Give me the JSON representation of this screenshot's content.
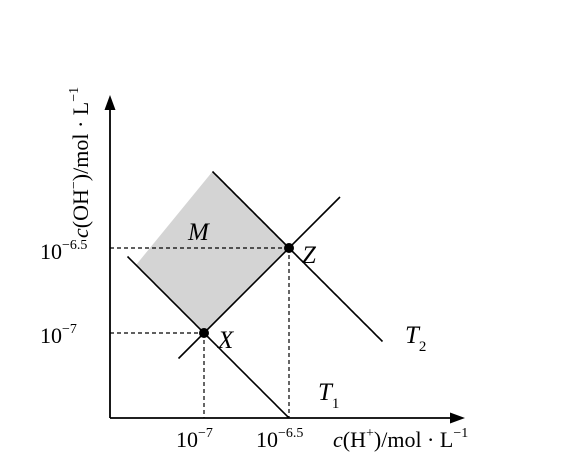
{
  "chart_data": {
    "type": "line",
    "x_axis": {
      "label_main": "c(H",
      "label_sup": "+",
      "label_rest": ")/mol · L",
      "label_unit_sup": "−1",
      "ticks": [
        {
          "base": "10",
          "exp": "−7",
          "value": -7
        },
        {
          "base": "10",
          "exp": "−6.5",
          "value": -6.5
        }
      ]
    },
    "y_axis": {
      "label_main": "c(OH",
      "label_sup": "−",
      "label_rest": ")/mol · L",
      "label_unit_sup": "−1",
      "ticks": [
        {
          "base": "10",
          "exp": "−7",
          "value": -7
        },
        {
          "base": "10",
          "exp": "−6.5",
          "value": -6.5
        }
      ]
    },
    "points": [
      {
        "label": "X",
        "x": -7,
        "y": -7
      },
      {
        "label": "Z",
        "x": -6.5,
        "y": -6.5
      }
    ],
    "curves": [
      {
        "label_base": "T",
        "label_sub": "1",
        "product_exponent": -14
      },
      {
        "label_base": "T",
        "label_sub": "2",
        "product_exponent": -13
      }
    ],
    "regions": [
      {
        "label": "M",
        "fill": "#d4d4d4"
      }
    ],
    "colors": {
      "ink": "#000000",
      "shade": "#d4d4d4"
    }
  }
}
